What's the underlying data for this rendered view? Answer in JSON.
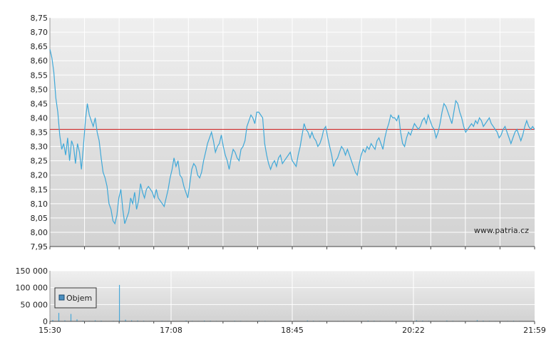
{
  "chart_data": [
    {
      "type": "line",
      "title": "",
      "xlabel": "",
      "ylabel": "",
      "ylim": [
        7.95,
        8.75
      ],
      "y_ticks": [
        "7,95",
        "8,00",
        "8,05",
        "8,10",
        "8,15",
        "8,20",
        "8,25",
        "8,30",
        "8,35",
        "8,40",
        "8,45",
        "8,50",
        "8,55",
        "8,60",
        "8,65",
        "8,70",
        "8,75"
      ],
      "reference_line": 8.36,
      "watermark": "www.patria.cz",
      "grid": true,
      "series": [
        {
          "values": [
            8.64,
            8.61,
            8.56,
            8.47,
            8.42,
            8.34,
            8.29,
            8.31,
            8.27,
            8.33,
            8.25,
            8.32,
            8.3,
            8.24,
            8.31,
            8.28,
            8.22,
            8.3,
            8.39,
            8.45,
            8.41,
            8.39,
            8.37,
            8.4,
            8.35,
            8.32,
            8.26,
            8.21,
            8.19,
            8.16,
            8.1,
            8.08,
            8.04,
            8.03,
            8.06,
            8.12,
            8.15,
            8.08,
            8.03,
            8.05,
            8.07,
            8.12,
            8.1,
            8.14,
            8.08,
            8.11,
            8.17,
            8.14,
            8.12,
            8.15,
            8.16,
            8.15,
            8.14,
            8.12,
            8.15,
            8.12,
            8.11,
            8.1,
            8.09,
            8.12,
            8.15,
            8.19,
            8.22,
            8.26,
            8.23,
            8.25,
            8.2,
            8.19,
            8.16,
            8.14,
            8.12,
            8.17,
            8.22,
            8.24,
            8.23,
            8.2,
            8.19,
            8.21,
            8.25,
            8.28,
            8.31,
            8.33,
            8.35,
            8.32,
            8.28,
            8.3,
            8.31,
            8.34,
            8.3,
            8.27,
            8.25,
            8.22,
            8.26,
            8.29,
            8.28,
            8.26,
            8.25,
            8.29,
            8.3,
            8.32,
            8.37,
            8.39,
            8.41,
            8.4,
            8.38,
            8.42,
            8.42,
            8.41,
            8.4,
            8.31,
            8.27,
            8.24,
            8.22,
            8.24,
            8.25,
            8.23,
            8.26,
            8.27,
            8.24,
            8.25,
            8.26,
            8.27,
            8.28,
            8.25,
            8.24,
            8.23,
            8.27,
            8.3,
            8.34,
            8.38,
            8.36,
            8.35,
            8.33,
            8.35,
            8.33,
            8.32,
            8.3,
            8.31,
            8.33,
            8.36,
            8.37,
            8.33,
            8.3,
            8.27,
            8.23,
            8.25,
            8.26,
            8.28,
            8.3,
            8.29,
            8.27,
            8.29,
            8.27,
            8.25,
            8.23,
            8.21,
            8.2,
            8.24,
            8.27,
            8.29,
            8.28,
            8.3,
            8.29,
            8.31,
            8.3,
            8.29,
            8.32,
            8.33,
            8.31,
            8.29,
            8.33,
            8.36,
            8.38,
            8.41,
            8.4,
            8.4,
            8.39,
            8.41,
            8.35,
            8.31,
            8.3,
            8.33,
            8.35,
            8.34,
            8.36,
            8.38,
            8.37,
            8.36,
            8.37,
            8.39,
            8.4,
            8.38,
            8.41,
            8.39,
            8.37,
            8.36,
            8.33,
            8.35,
            8.38,
            8.42,
            8.45,
            8.44,
            8.42,
            8.4,
            8.38,
            8.42,
            8.46,
            8.45,
            8.42,
            8.4,
            8.37,
            8.35,
            8.36,
            8.37,
            8.38,
            8.37,
            8.39,
            8.38,
            8.4,
            8.39,
            8.37,
            8.38,
            8.39,
            8.4,
            8.38,
            8.37,
            8.36,
            8.35,
            8.33,
            8.34,
            8.36,
            8.37,
            8.35,
            8.33,
            8.31,
            8.33,
            8.35,
            8.36,
            8.34,
            8.32,
            8.34,
            8.37,
            8.39,
            8.37,
            8.36,
            8.37,
            8.36
          ]
        }
      ]
    },
    {
      "type": "bar",
      "title": "",
      "xlabel": "",
      "ylabel": "",
      "ylim": [
        0,
        150000
      ],
      "y_ticks": [
        "0",
        "50 000",
        "100 000",
        "150 000"
      ],
      "x_ticks": [
        "15:30",
        "17:08",
        "18:45",
        "20:22",
        "21:59"
      ],
      "legend": {
        "label": "Objem",
        "color": "#4a8fc0"
      },
      "series": [
        {
          "name": "Objem",
          "values": [
            4000,
            25000,
            3000,
            22000,
            6000,
            2000,
            1500,
            3000,
            2000,
            1000,
            1500,
            108000,
            5000,
            3000,
            2500,
            1800,
            1200,
            900,
            1600,
            1400,
            1100,
            900,
            2400,
            1500,
            1200,
            2200,
            1900,
            1300,
            1000,
            900,
            1800,
            1600,
            1200,
            900,
            2000,
            1700,
            1300,
            1100,
            900,
            1500,
            1200,
            1000,
            2600,
            1800,
            1300,
            1000,
            900,
            1200,
            1400,
            1100,
            900,
            800,
            2200,
            1800,
            1300,
            1000,
            1600,
            1200,
            900,
            1100,
            3200,
            2000,
            1500,
            1200,
            1000,
            2400,
            1600,
            1200,
            1000,
            900,
            3500,
            2100,
            1500,
            1200,
            1000,
            1400,
            1800,
            1300,
            1000,
            900
          ]
        }
      ]
    }
  ]
}
